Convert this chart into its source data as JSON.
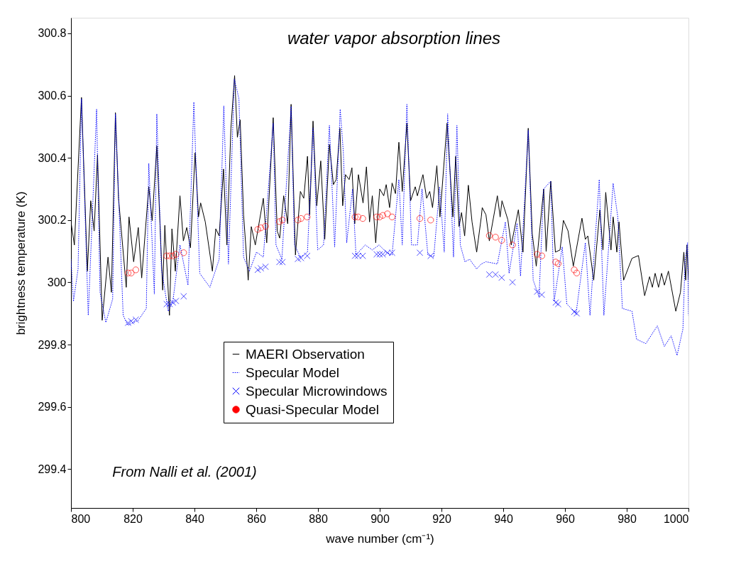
{
  "chart_data": {
    "type": "line",
    "xlabel": "wave number (cm⁻¹)",
    "ylabel": "brightness temperature (K)",
    "annotations": [
      "water vapor absorption lines",
      "From Nalli et al. (2001)"
    ],
    "xlim": [
      800,
      1000
    ],
    "xticks": [
      800,
      820,
      840,
      860,
      880,
      900,
      920,
      940,
      960,
      980,
      1000
    ],
    "ylim": [
      299.275,
      300.85
    ],
    "yticks": [
      299.4,
      299.6,
      299.8,
      300,
      300.2,
      300.4,
      300.6,
      300.8
    ],
    "grid": false,
    "legend": "bottom",
    "series": [
      {
        "name": "MAERI Observation",
        "color": "#000000",
        "line_style": "solid",
        "x": [
          800,
          801.1,
          803.4,
          805.3,
          806.4,
          807.5,
          808.6,
          810.1,
          812.0,
          813.1,
          814.4,
          815.4,
          817.9,
          818.8,
          820.3,
          821.8,
          822.9,
          825.2,
          826.3,
          827.8,
          829.7,
          830.4,
          831.9,
          832.7,
          833.8,
          835.3,
          836.4,
          837.5,
          838.7,
          840.2,
          841.3,
          842.0,
          843.5,
          845.8,
          846.9,
          848.0,
          849.4,
          850.5,
          851.8,
          853.0,
          853.9,
          854.8,
          855.9,
          857.4,
          858.4,
          859.7,
          862.3,
          863.4,
          865.5,
          866.8,
          867.6,
          868.9,
          870.2,
          871.3,
          872.7,
          874.3,
          875.4,
          876.6,
          877.3,
          878.4,
          879.6,
          880.9,
          882.2,
          883.7,
          885.0,
          885.9,
          887.1,
          888.0,
          888.9,
          890.1,
          891.0,
          891.9,
          893.1,
          894.6,
          895.7,
          896.7,
          897.6,
          898.7,
          900.0,
          901.3,
          902.1,
          903.2,
          904.0,
          905.1,
          906.2,
          907.3,
          908.8,
          910.0,
          911.5,
          912.2,
          914.0,
          915.2,
          916.2,
          917.1,
          918.5,
          919.5,
          921.8,
          923.7,
          924.6,
          925.7,
          926.5,
          927.5,
          928.7,
          929.9,
          931.4,
          932.9,
          933.2,
          934.4,
          935.5,
          938.1,
          939.0,
          939.6,
          941.5,
          942.6,
          944.9,
          946.4,
          948.1,
          949.4,
          950.7,
          953.1,
          953.9,
          955.4,
          956.9,
          958.4,
          959.5,
          961.0,
          962.7,
          965.5,
          966.6,
          967.4,
          969.3,
          971.3,
          972.3,
          973.2,
          974.9,
          975.6,
          976.8,
          977.5,
          979.0,
          981.7,
          983.8,
          985.8,
          987.4,
          988.3,
          989.2,
          990.3,
          991.3,
          992.2,
          993.5,
          995.9,
          997.4,
          998.5,
          999.1,
          999.5,
          1000
        ],
        "values": [
          300.194,
          300.12,
          300.594,
          300.036,
          300.262,
          300.165,
          300.41,
          299.878,
          300.081,
          299.968,
          300.545,
          300.27,
          299.984,
          300.21,
          300.066,
          300.176,
          300.014,
          300.307,
          300.198,
          300.438,
          299.975,
          300.183,
          299.894,
          300.172,
          300.036,
          300.278,
          300.133,
          300.176,
          300.111,
          300.416,
          300.21,
          300.255,
          300.194,
          300.036,
          300.172,
          300.149,
          300.364,
          300.12,
          300.495,
          300.664,
          300.466,
          300.522,
          300.217,
          300.007,
          300.179,
          300.12,
          300.27,
          300.127,
          300.529,
          300.165,
          300.142,
          300.278,
          300.188,
          300.572,
          300.088,
          300.292,
          300.27,
          300.405,
          300.217,
          300.518,
          300.246,
          300.39,
          300.138,
          300.443,
          300.314,
          300.33,
          300.495,
          300.246,
          300.346,
          300.33,
          300.368,
          300.188,
          300.346,
          300.255,
          300.371,
          300.194,
          300.278,
          300.127,
          300.3,
          300.278,
          300.314,
          300.24,
          300.319,
          300.285,
          300.45,
          300.292,
          300.511,
          300.262,
          300.307,
          300.278,
          300.346,
          300.27,
          300.292,
          300.24,
          300.375,
          300.21,
          300.511,
          300.21,
          300.405,
          300.179,
          300.224,
          300.149,
          300.312,
          300.194,
          300.097,
          300.21,
          300.24,
          300.217,
          300.133,
          300.278,
          300.21,
          300.262,
          300.201,
          300.12,
          300.233,
          300.097,
          300.495,
          300.156,
          300.052,
          300.3,
          300.099,
          300.325,
          300.097,
          300.104,
          300.199,
          300.165,
          300.052,
          300.206,
          300.138,
          300.149,
          300.007,
          300.233,
          300.104,
          300.289,
          300.104,
          300.21,
          300.097,
          300.194,
          300.007,
          300.077,
          300.086,
          299.957,
          300.018,
          299.984,
          300.029,
          299.984,
          300.029,
          299.991,
          300.036,
          299.907,
          299.968,
          300.097,
          300.007,
          300.12,
          300.007
        ]
      },
      {
        "name": "Specular Model",
        "color": "#0000ff",
        "line_style": "dotted",
        "x": [
          800,
          800.8,
          802.3,
          803.4,
          805.6,
          808.3,
          809.4,
          811.3,
          813.5,
          814.4,
          816.9,
          818.4,
          821.8,
          824.4,
          825.2,
          827.0,
          827.8,
          829.3,
          831.5,
          833.0,
          835.3,
          837.9,
          839.8,
          841.7,
          845.0,
          848.0,
          849.5,
          851.0,
          852.9,
          854.4,
          855.9,
          857.8,
          860.1,
          862.3,
          865.5,
          866.4,
          868.3,
          871.3,
          872.4,
          874.3,
          876.6,
          878.4,
          879.9,
          881.8,
          883.7,
          885.4,
          887.2,
          888.2,
          889.3,
          891.2,
          892.3,
          895.3,
          897.6,
          899.8,
          902.1,
          904.0,
          906.2,
          907.3,
          908.8,
          910.3,
          912.2,
          913.7,
          915.6,
          917.5,
          919.4,
          920.9,
          922.0,
          923.9,
          925.0,
          926.1,
          927.6,
          929.1,
          931.4,
          932.9,
          934.4,
          938.1,
          940.7,
          941.9,
          944.5,
          945.6,
          948.1,
          949.7,
          951.6,
          953.1,
          955.4,
          956.5,
          959.1,
          960.6,
          963.6,
          966.6,
          968.1,
          971.1,
          972.6,
          975.6,
          977.1,
          978.6,
          981.7,
          983.2,
          986.2,
          989.9,
          992.2,
          994.4,
          996.3,
          998.2,
          998.9,
          999.7,
          1000
        ],
        "values": [
          300.074,
          299.939,
          300.043,
          300.59,
          299.894,
          300.556,
          299.968,
          299.871,
          299.946,
          300.541,
          299.894,
          299.862,
          299.878,
          299.916,
          300.382,
          299.962,
          300.541,
          300.043,
          299.907,
          299.939,
          300.12,
          299.991,
          300.579,
          300.029,
          299.984,
          300.074,
          300.567,
          300.059,
          300.653,
          300.59,
          300.081,
          300.036,
          300.097,
          300.081,
          300.511,
          300.12,
          300.074,
          300.565,
          300.12,
          300.081,
          300.097,
          300.495,
          300.104,
          300.12,
          300.504,
          300.114,
          300.556,
          300.42,
          300.127,
          300.3,
          300.088,
          300.12,
          300.104,
          300.12,
          300.097,
          300.088,
          300.33,
          300.12,
          300.572,
          300.12,
          300.12,
          300.3,
          300.088,
          300.081,
          300.307,
          300.097,
          300.541,
          300.081,
          300.504,
          300.12,
          300.066,
          300.074,
          300.043,
          300.059,
          300.066,
          300.059,
          300.194,
          300.029,
          300.19,
          300.02,
          300.488,
          300.007,
          299.953,
          300.3,
          300.325,
          299.939,
          300.114,
          299.93,
          299.901,
          300.127,
          299.894,
          300.33,
          299.894,
          300.318,
          300.21,
          299.916,
          299.907,
          299.817,
          299.803,
          299.86,
          299.794,
          299.828,
          299.765,
          299.85,
          300.07,
          300.127,
          299.894
        ]
      },
      {
        "name": "Specular Microwindows",
        "color": "#0000ff",
        "type": "scatter",
        "marker": "cross",
        "x": [
          818.5,
          819.5,
          821,
          831,
          832,
          833,
          834,
          836.5,
          860.5,
          861.5,
          863,
          867.5,
          868.5,
          873.5,
          874.5,
          876.5,
          892,
          893,
          894.5,
          899,
          900,
          901,
          902.5,
          904,
          913,
          916.5,
          935.5,
          937.5,
          939.5,
          943,
          951,
          952.5,
          957,
          957.8,
          963,
          963.8
        ],
        "values": [
          299.87,
          299.875,
          299.88,
          299.93,
          299.93,
          299.935,
          299.94,
          299.955,
          300.04,
          300.045,
          300.05,
          300.065,
          300.065,
          300.075,
          300.078,
          300.085,
          300.085,
          300.085,
          300.085,
          300.09,
          300.09,
          300.09,
          300.095,
          300.095,
          300.095,
          300.085,
          300.025,
          300.025,
          300.015,
          300.0,
          299.97,
          299.96,
          299.935,
          299.93,
          299.905,
          299.9
        ]
      },
      {
        "name": "Quasi-Specular Model",
        "color": "#ff0000",
        "type": "scatter",
        "marker": "circle",
        "x": [
          818.5,
          819.5,
          821,
          831,
          832,
          833,
          834,
          836.5,
          860.5,
          861.5,
          863,
          867.5,
          868.5,
          873.5,
          874.5,
          876.5,
          892,
          893,
          894.5,
          899,
          900,
          901,
          902.5,
          904,
          913,
          916.5,
          935.5,
          937.5,
          939.5,
          943,
          951,
          952.5,
          957,
          957.8,
          963,
          963.8
        ],
        "values": [
          300.03,
          300.03,
          300.04,
          300.085,
          300.085,
          300.085,
          300.09,
          300.095,
          300.17,
          300.175,
          300.18,
          300.195,
          300.2,
          300.2,
          300.205,
          300.21,
          300.21,
          300.21,
          300.205,
          300.21,
          300.21,
          300.215,
          300.22,
          300.21,
          300.205,
          300.2,
          300.15,
          300.145,
          300.135,
          300.12,
          300.09,
          300.085,
          300.065,
          300.06,
          300.04,
          300.03
        ]
      }
    ]
  }
}
